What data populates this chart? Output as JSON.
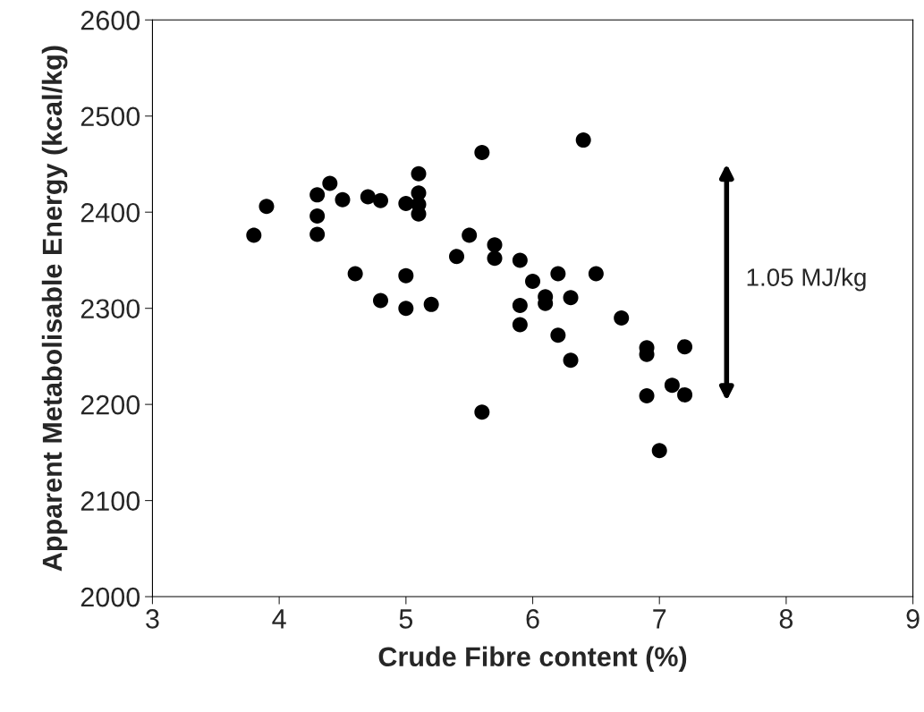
{
  "chart_data": {
    "type": "scatter",
    "xlabel": "Crude Fibre content (%)",
    "ylabel": "Apparent Metabolisable Energy (kcal/kg)",
    "x": [
      3.8,
      3.9,
      4.3,
      4.3,
      4.3,
      4.4,
      4.5,
      4.6,
      4.7,
      4.8,
      4.8,
      5.0,
      5.0,
      5.0,
      5.1,
      5.1,
      5.1,
      5.1,
      5.2,
      5.4,
      5.5,
      5.6,
      5.6,
      5.7,
      5.7,
      5.9,
      5.9,
      5.9,
      6.0,
      6.1,
      6.1,
      6.2,
      6.2,
      6.3,
      6.3,
      6.4,
      6.5,
      6.7,
      6.9,
      6.9,
      6.9,
      7.0,
      7.1,
      7.2,
      7.2
    ],
    "values": [
      2376,
      2406,
      2418,
      2396,
      2377,
      2430,
      2413,
      2336,
      2416,
      2412,
      2308,
      2409,
      2334,
      2300,
      2440,
      2420,
      2408,
      2398,
      2304,
      2354,
      2376,
      2462,
      2192,
      2366,
      2352,
      2350,
      2303,
      2283,
      2328,
      2312,
      2305,
      2336,
      2272,
      2311,
      2246,
      2475,
      2336,
      2290,
      2259,
      2252,
      2209,
      2152,
      2220,
      2260,
      2210
    ],
    "color": "#000000",
    "marker": "circle",
    "xlim": [
      3,
      9
    ],
    "xticks": [
      3,
      4,
      5,
      6,
      7,
      8,
      9
    ],
    "ylim": [
      2000,
      2600
    ],
    "yticks": [
      2000,
      2100,
      2200,
      2300,
      2400,
      2500,
      2600
    ],
    "grid": false,
    "legend": false,
    "annotations": [
      "1.05 MJ/kg"
    ]
  }
}
